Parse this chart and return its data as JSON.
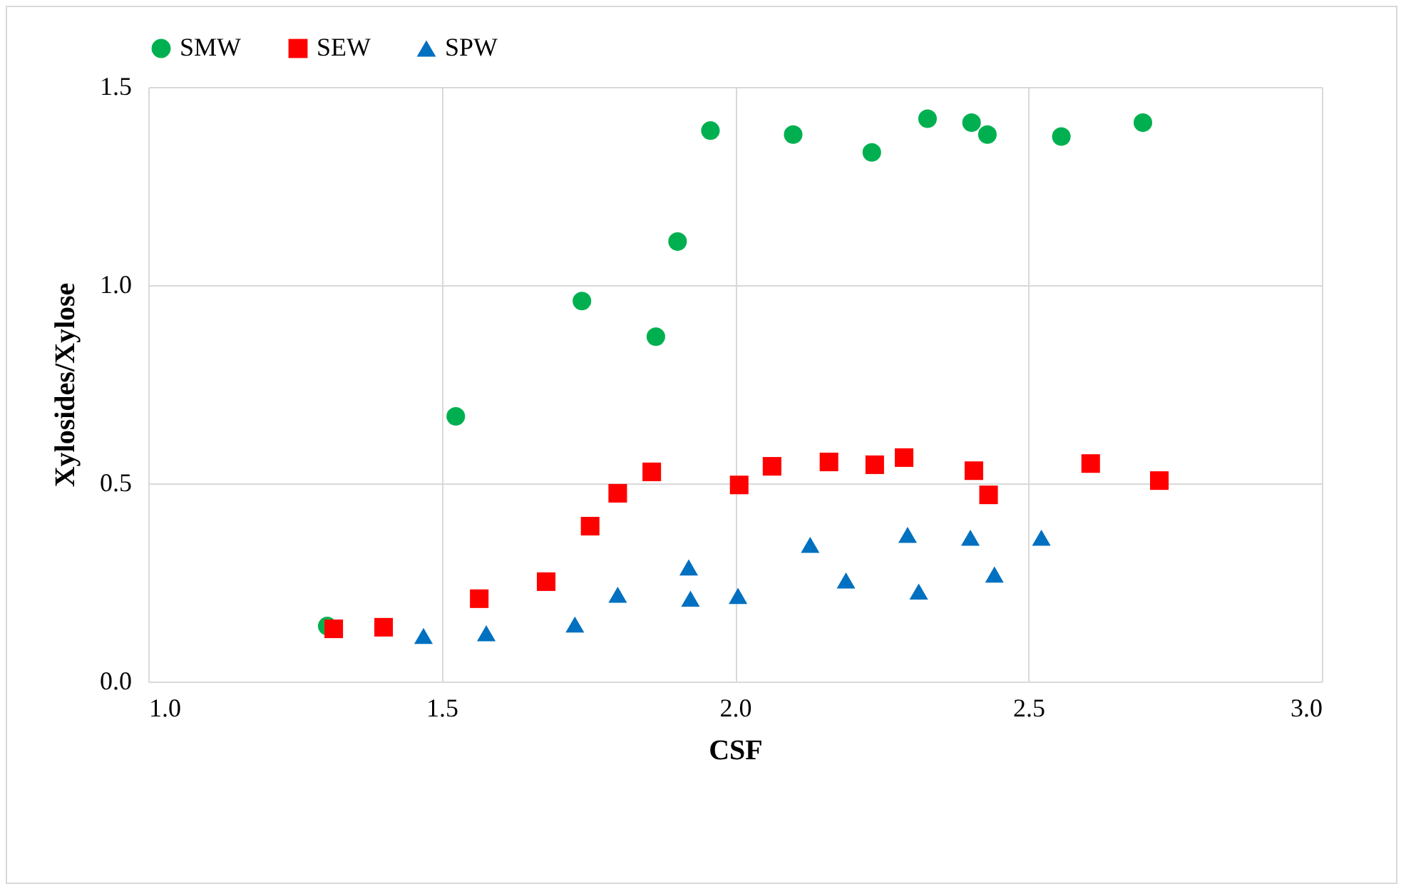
{
  "chart_data": {
    "type": "scatter",
    "xlabel": "CSF",
    "ylabel": "Xylosides/Xylose",
    "xlim": [
      1.0,
      3.0
    ],
    "xticks": [
      {
        "value": 1.0,
        "label": "1.0"
      },
      {
        "value": 1.5,
        "label": "1.5"
      },
      {
        "value": 2.0,
        "label": "2.0"
      },
      {
        "value": 2.5,
        "label": "2.5"
      },
      {
        "value": 3.0,
        "label": "3.0"
      }
    ],
    "ylim": [
      0.0,
      1.5
    ],
    "yticks": [
      {
        "value": 0.0,
        "label": "0.0"
      },
      {
        "value": 0.5,
        "label": "0.5"
      },
      {
        "value": 1.0,
        "label": "1.0"
      },
      {
        "value": 1.5,
        "label": "1.5"
      }
    ],
    "grid": true,
    "legend": "top",
    "series": [
      {
        "name": "SMW",
        "color": "#00b050",
        "marker": "circle",
        "x": [
          1.305,
          1.524,
          1.739,
          1.865,
          1.902,
          1.958,
          2.099,
          2.233,
          2.328,
          2.403,
          2.43,
          2.556,
          2.695
        ],
        "values": [
          0.14,
          0.669,
          0.96,
          0.87,
          1.11,
          1.39,
          1.38,
          1.335,
          1.42,
          1.41,
          1.38,
          1.375,
          1.41
        ]
      },
      {
        "name": "SEW",
        "color": "#ff0000",
        "marker": "square",
        "x": [
          1.316,
          1.401,
          1.564,
          1.678,
          1.753,
          1.8,
          1.858,
          2.007,
          2.063,
          2.16,
          2.238,
          2.288,
          2.407,
          2.432,
          2.606,
          2.723
        ],
        "values": [
          0.133,
          0.137,
          0.209,
          0.252,
          0.392,
          0.475,
          0.529,
          0.496,
          0.543,
          0.554,
          0.547,
          0.565,
          0.532,
          0.471,
          0.55,
          0.507
        ]
      },
      {
        "name": "SPW",
        "color": "#0070c0",
        "marker": "triangle",
        "x": [
          1.469,
          1.576,
          1.727,
          1.8,
          1.921,
          1.924,
          2.005,
          2.128,
          2.189,
          2.294,
          2.313,
          2.401,
          2.442,
          2.522
        ],
        "values": [
          0.115,
          0.122,
          0.144,
          0.219,
          0.288,
          0.209,
          0.216,
          0.345,
          0.255,
          0.37,
          0.227,
          0.363,
          0.27,
          0.363
        ]
      }
    ]
  }
}
